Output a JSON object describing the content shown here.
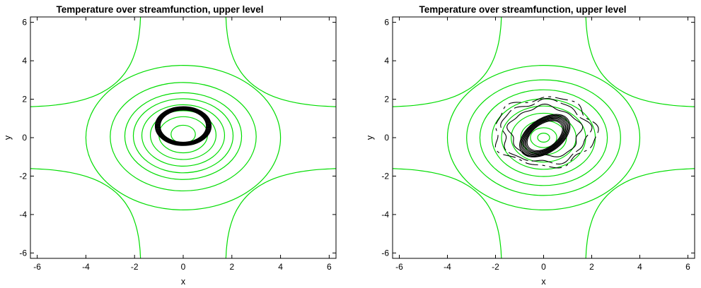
{
  "chart_data": [
    {
      "type": "contour",
      "title": "Temperature over streamfunction, upper level",
      "xlabel": "x",
      "ylabel": "y",
      "xlim": [
        -6.28,
        6.28
      ],
      "ylim": [
        -6.28,
        6.28
      ],
      "xticks": [
        "-6",
        "-4",
        "-2",
        "0",
        "2",
        "4",
        "6"
      ],
      "yticks": [
        "-6",
        "-4",
        "-2",
        "0",
        "2",
        "4",
        "6"
      ],
      "grid": false,
      "legend": "none",
      "streamfunction_color": "#00dd00",
      "temperature_color": "#000000",
      "streamfunction_center": [
        0,
        0.2
      ],
      "streamfunction_closed_radii": [
        0.5,
        1.0,
        1.35,
        1.7,
        2.05,
        2.4,
        3.0,
        4.0
      ],
      "streamfunction_open_branches": "four hyperbolic curves in the corners",
      "temperature_ring": {
        "center": [
          0,
          0.6
        ],
        "radius": 1.05,
        "thickness": 0.2,
        "tilt": 0
      }
    },
    {
      "type": "contour",
      "title": "Temperature over streamfunction, upper level",
      "xlabel": "x",
      "ylabel": "y",
      "xlim": [
        -6.28,
        6.28
      ],
      "ylim": [
        -6.28,
        6.28
      ],
      "xticks": [
        "-6",
        "-4",
        "-2",
        "0",
        "2",
        "4",
        "6"
      ],
      "yticks": [
        "-6",
        "-4",
        "-2",
        "0",
        "2",
        "4",
        "6"
      ],
      "grid": false,
      "legend": "none",
      "streamfunction_color": "#00dd00",
      "temperature_color": "#000000",
      "streamfunction_center": [
        0,
        0
      ],
      "streamfunction_closed_radii": [
        0.25,
        0.55,
        0.95,
        1.35,
        1.75,
        2.15,
        2.65,
        3.2,
        4.0
      ],
      "streamfunction_open_branches": "four hyperbolic curves in the corners",
      "temperature_ring": {
        "center": [
          0.05,
          0.1
        ],
        "radius": 1.0,
        "thickness": 0.35,
        "tilt": -35
      }
    }
  ]
}
